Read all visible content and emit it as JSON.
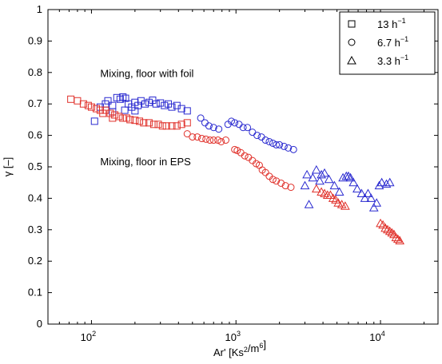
{
  "chart_data": {
    "type": "scatter",
    "xscale": "log",
    "xlim": [
      50,
      25000
    ],
    "ylim": [
      0,
      1
    ],
    "xlabel": "Ar' [Ks²/m⁶]",
    "ylabel": "γ [–]",
    "xticks": [
      {
        "value": 100,
        "label": "10²"
      },
      {
        "value": 1000,
        "label": "10³"
      },
      {
        "value": 10000,
        "label": "10⁴"
      }
    ],
    "yticks": [
      {
        "value": 0,
        "label": "0"
      },
      {
        "value": 0.1,
        "label": "0.1"
      },
      {
        "value": 0.2,
        "label": "0.2"
      },
      {
        "value": 0.3,
        "label": "0.3"
      },
      {
        "value": 0.4,
        "label": "0.4"
      },
      {
        "value": 0.5,
        "label": "0.5"
      },
      {
        "value": 0.6,
        "label": "0.6"
      },
      {
        "value": 0.7,
        "label": "0.7"
      },
      {
        "value": 0.8,
        "label": "0.8"
      },
      {
        "value": 0.9,
        "label": "0.9"
      },
      {
        "value": 1,
        "label": "1"
      }
    ],
    "grid": false,
    "legend_position": "top-right",
    "legend": [
      {
        "marker": "square",
        "label": "13 h⁻¹"
      },
      {
        "marker": "circle",
        "label": "6.7 h⁻¹"
      },
      {
        "marker": "triangle",
        "label": "3.3 h⁻¹"
      }
    ],
    "annotations": [
      {
        "text": "Mixing, floor with foil",
        "x": 115,
        "y": 0.785
      },
      {
        "text": "Mixing, floor in EPS",
        "x": 115,
        "y": 0.505
      }
    ],
    "colors": {
      "foil": "#2a2ad0",
      "eps": "#e0302a"
    },
    "series": [
      {
        "group": "foil",
        "marker": "square",
        "points": [
          [
            105,
            0.645
          ],
          [
            115,
            0.69
          ],
          [
            125,
            0.7
          ],
          [
            130,
            0.71
          ],
          [
            140,
            0.695
          ],
          [
            150,
            0.72
          ],
          [
            158,
            0.715
          ],
          [
            165,
            0.722
          ],
          [
            172,
            0.718
          ],
          [
            180,
            0.7
          ],
          [
            190,
            0.69
          ],
          [
            200,
            0.705
          ],
          [
            210,
            0.695
          ],
          [
            220,
            0.71
          ],
          [
            235,
            0.7
          ],
          [
            250,
            0.705
          ],
          [
            265,
            0.712
          ],
          [
            280,
            0.7
          ],
          [
            300,
            0.703
          ],
          [
            320,
            0.695
          ],
          [
            340,
            0.7
          ],
          [
            360,
            0.69
          ],
          [
            390,
            0.695
          ],
          [
            420,
            0.685
          ],
          [
            460,
            0.678
          ],
          [
            140,
            0.675
          ],
          [
            170,
            0.68
          ],
          [
            200,
            0.678
          ]
        ]
      },
      {
        "group": "foil",
        "marker": "circle",
        "points": [
          [
            570,
            0.655
          ],
          [
            610,
            0.64
          ],
          [
            650,
            0.63
          ],
          [
            700,
            0.625
          ],
          [
            760,
            0.62
          ],
          [
            880,
            0.635
          ],
          [
            930,
            0.645
          ],
          [
            980,
            0.64
          ],
          [
            1050,
            0.635
          ],
          [
            1120,
            0.625
          ],
          [
            1200,
            0.625
          ],
          [
            1300,
            0.61
          ],
          [
            1400,
            0.6
          ],
          [
            1500,
            0.595
          ],
          [
            1600,
            0.585
          ],
          [
            1700,
            0.58
          ],
          [
            1800,
            0.575
          ],
          [
            1900,
            0.57
          ],
          [
            2000,
            0.57
          ],
          [
            2150,
            0.565
          ],
          [
            2300,
            0.56
          ],
          [
            2500,
            0.555
          ]
        ]
      },
      {
        "group": "foil",
        "marker": "triangle",
        "points": [
          [
            3000,
            0.44
          ],
          [
            3100,
            0.475
          ],
          [
            3200,
            0.38
          ],
          [
            3400,
            0.465
          ],
          [
            3600,
            0.49
          ],
          [
            3800,
            0.455
          ],
          [
            3900,
            0.475
          ],
          [
            4100,
            0.48
          ],
          [
            4400,
            0.46
          ],
          [
            4800,
            0.44
          ],
          [
            5200,
            0.42
          ],
          [
            5500,
            0.465
          ],
          [
            5800,
            0.47
          ],
          [
            6000,
            0.47
          ],
          [
            6200,
            0.465
          ],
          [
            6500,
            0.45
          ],
          [
            6900,
            0.43
          ],
          [
            7400,
            0.415
          ],
          [
            7800,
            0.4
          ],
          [
            8200,
            0.415
          ],
          [
            8600,
            0.4
          ],
          [
            9000,
            0.37
          ],
          [
            9400,
            0.385
          ],
          [
            9800,
            0.44
          ],
          [
            10200,
            0.45
          ],
          [
            11000,
            0.445
          ],
          [
            11600,
            0.45
          ]
        ]
      },
      {
        "group": "eps",
        "marker": "square",
        "points": [
          [
            72,
            0.715
          ],
          [
            80,
            0.71
          ],
          [
            88,
            0.7
          ],
          [
            95,
            0.695
          ],
          [
            100,
            0.69
          ],
          [
            108,
            0.685
          ],
          [
            115,
            0.68
          ],
          [
            125,
            0.68
          ],
          [
            135,
            0.67
          ],
          [
            145,
            0.665
          ],
          [
            155,
            0.66
          ],
          [
            165,
            0.655
          ],
          [
            175,
            0.655
          ],
          [
            185,
            0.65
          ],
          [
            200,
            0.648
          ],
          [
            215,
            0.645
          ],
          [
            230,
            0.64
          ],
          [
            250,
            0.64
          ],
          [
            270,
            0.635
          ],
          [
            290,
            0.635
          ],
          [
            310,
            0.63
          ],
          [
            330,
            0.63
          ],
          [
            360,
            0.63
          ],
          [
            390,
            0.63
          ],
          [
            420,
            0.635
          ],
          [
            460,
            0.64
          ],
          [
            120,
            0.67
          ],
          [
            140,
            0.655
          ]
        ]
      },
      {
        "group": "eps",
        "marker": "circle",
        "points": [
          [
            460,
            0.605
          ],
          [
            500,
            0.595
          ],
          [
            540,
            0.595
          ],
          [
            580,
            0.59
          ],
          [
            620,
            0.588
          ],
          [
            660,
            0.585
          ],
          [
            700,
            0.585
          ],
          [
            750,
            0.585
          ],
          [
            790,
            0.58
          ],
          [
            850,
            0.585
          ],
          [
            980,
            0.555
          ],
          [
            1020,
            0.552
          ],
          [
            1080,
            0.545
          ],
          [
            1150,
            0.535
          ],
          [
            1220,
            0.53
          ],
          [
            1300,
            0.52
          ],
          [
            1380,
            0.51
          ],
          [
            1450,
            0.505
          ],
          [
            1520,
            0.49
          ],
          [
            1600,
            0.482
          ],
          [
            1700,
            0.47
          ],
          [
            1800,
            0.46
          ],
          [
            1900,
            0.455
          ],
          [
            2050,
            0.448
          ],
          [
            2200,
            0.44
          ],
          [
            2400,
            0.435
          ]
        ]
      },
      {
        "group": "eps",
        "marker": "triangle",
        "points": [
          [
            3600,
            0.43
          ],
          [
            3900,
            0.42
          ],
          [
            4100,
            0.415
          ],
          [
            4300,
            0.41
          ],
          [
            4500,
            0.41
          ],
          [
            4700,
            0.4
          ],
          [
            4900,
            0.395
          ],
          [
            5100,
            0.385
          ],
          [
            5400,
            0.38
          ],
          [
            5700,
            0.375
          ],
          [
            10000,
            0.32
          ],
          [
            10400,
            0.315
          ],
          [
            10800,
            0.305
          ],
          [
            11200,
            0.3
          ],
          [
            11600,
            0.295
          ],
          [
            12000,
            0.29
          ],
          [
            12400,
            0.285
          ],
          [
            12800,
            0.275
          ],
          [
            13200,
            0.27
          ],
          [
            13600,
            0.265
          ]
        ]
      }
    ]
  }
}
